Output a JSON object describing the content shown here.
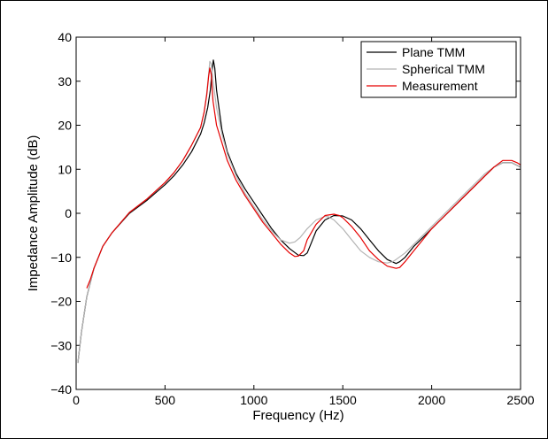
{
  "chart_data": {
    "type": "line",
    "title": "",
    "xlabel": "Frequency (Hz)",
    "ylabel": "Impedance Amplitude (dB)",
    "xlim": [
      0,
      2500
    ],
    "ylim": [
      -40,
      40
    ],
    "xticks": [
      0,
      500,
      1000,
      1500,
      2000,
      2500
    ],
    "yticks": [
      -40,
      -30,
      -20,
      -10,
      0,
      10,
      20,
      30,
      40
    ],
    "xtick_labels": [
      "0",
      "500",
      "1000",
      "1500",
      "2000",
      "2500"
    ],
    "ytick_labels": [
      "−40",
      "−30",
      "−20",
      "−10",
      "0",
      "10",
      "20",
      "30",
      "40"
    ],
    "grid": false,
    "legend_position": "top-right",
    "series": [
      {
        "name": "Plane TMM",
        "color": "#000000",
        "x": [
          10,
          30,
          60,
          100,
          150,
          200,
          300,
          400,
          500,
          550,
          600,
          650,
          700,
          720,
          740,
          755,
          765,
          772,
          780,
          790,
          800,
          820,
          850,
          900,
          950,
          1000,
          1050,
          1100,
          1150,
          1200,
          1250,
          1280,
          1300,
          1320,
          1350,
          1400,
          1450,
          1500,
          1550,
          1600,
          1650,
          1700,
          1750,
          1800,
          1820,
          1850,
          1900,
          1950,
          2000,
          2050,
          2100,
          2150,
          2200,
          2250,
          2300,
          2350,
          2400,
          2450,
          2500
        ],
        "y": [
          -34,
          -27,
          -19,
          -12.5,
          -7.5,
          -4.5,
          0,
          3,
          6.5,
          8.5,
          11,
          14,
          18,
          20.5,
          24,
          28,
          32.5,
          34.8,
          33,
          28,
          25,
          19,
          14,
          9,
          5.5,
          2.5,
          -0.5,
          -3.5,
          -6,
          -8,
          -9.5,
          -9.6,
          -9,
          -7,
          -4,
          -1.5,
          -0.5,
          -0.6,
          -1.5,
          -3.5,
          -6,
          -8.5,
          -10.5,
          -11.4,
          -11,
          -10,
          -7.5,
          -5.5,
          -3.5,
          -1.5,
          0.5,
          2.5,
          4.5,
          6.5,
          8.5,
          10.5,
          11.5,
          11.5,
          10.5
        ]
      },
      {
        "name": "Spherical TMM",
        "color": "#b4b4b4",
        "x": [
          10,
          30,
          60,
          100,
          150,
          200,
          300,
          400,
          500,
          550,
          600,
          650,
          700,
          720,
          735,
          745,
          752,
          760,
          770,
          790,
          820,
          850,
          900,
          950,
          1000,
          1050,
          1100,
          1150,
          1200,
          1230,
          1260,
          1300,
          1350,
          1400,
          1420,
          1450,
          1500,
          1550,
          1600,
          1650,
          1700,
          1750,
          1780,
          1800,
          1850,
          1900,
          1950,
          2000,
          2050,
          2100,
          2150,
          2200,
          2250,
          2300,
          2350,
          2400,
          2450,
          2500
        ],
        "y": [
          -34,
          -27,
          -19,
          -12.5,
          -7.5,
          -4.5,
          0.2,
          3.3,
          7,
          9.2,
          12,
          15.5,
          19.5,
          23,
          27.5,
          31.5,
          34.5,
          34,
          30,
          24,
          18,
          13.5,
          8.5,
          4.5,
          1.5,
          -1.5,
          -4,
          -6,
          -6.8,
          -6.5,
          -5.5,
          -3.5,
          -1.5,
          -0.7,
          -0.8,
          -1.5,
          -3.5,
          -6,
          -8.5,
          -10,
          -11,
          -11.3,
          -11,
          -10.5,
          -9,
          -7,
          -5,
          -3,
          -1,
          1,
          3,
          5,
          7,
          9,
          10.5,
          11.5,
          11.5,
          10.5
        ]
      },
      {
        "name": "Measurement",
        "color": "#e60000",
        "x": [
          60,
          80,
          100,
          150,
          200,
          300,
          400,
          500,
          550,
          600,
          650,
          700,
          720,
          735,
          745,
          752,
          760,
          770,
          790,
          820,
          850,
          900,
          950,
          1000,
          1050,
          1100,
          1150,
          1200,
          1230,
          1250,
          1280,
          1300,
          1350,
          1400,
          1450,
          1480,
          1500,
          1550,
          1600,
          1650,
          1700,
          1750,
          1800,
          1820,
          1850,
          1900,
          1950,
          2000,
          2050,
          2100,
          2150,
          2200,
          2250,
          2300,
          2350,
          2400,
          2450,
          2480,
          2500
        ],
        "y": [
          -17,
          -15,
          -12.5,
          -7.5,
          -4.5,
          0.2,
          3.3,
          7,
          9.2,
          12,
          15.5,
          19.5,
          23,
          27,
          31,
          33,
          31.5,
          25.5,
          20,
          16,
          12,
          7.5,
          4,
          1,
          -2,
          -4.5,
          -7,
          -9,
          -9.8,
          -9.7,
          -8.5,
          -6,
          -2.5,
          -0.5,
          -0.2,
          -0.5,
          -1,
          -3,
          -5.5,
          -8.5,
          -10.5,
          -12,
          -12.5,
          -12.3,
          -11,
          -8.5,
          -6,
          -3.5,
          -1.5,
          0.5,
          2.5,
          4.5,
          6.5,
          8.5,
          10.5,
          12,
          12,
          11.5,
          11
        ]
      }
    ]
  }
}
